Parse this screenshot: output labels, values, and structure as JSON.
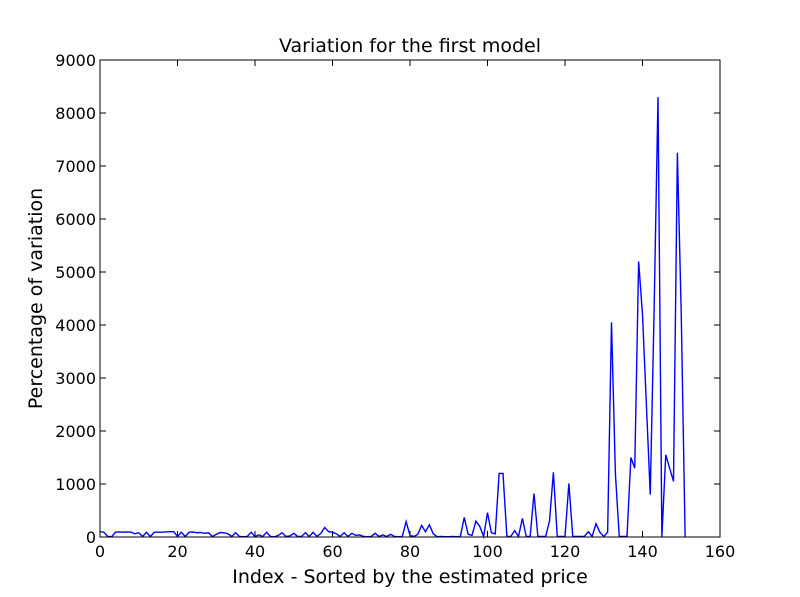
{
  "chart_data": {
    "type": "line",
    "title": "Variation for the first model",
    "xlabel": "Index - Sorted by the estimated price",
    "ylabel": "Percentage of variation",
    "xlim": [
      0,
      160
    ],
    "ylim": [
      0,
      9000
    ],
    "xticks": [
      0,
      20,
      40,
      60,
      80,
      100,
      120,
      140,
      160
    ],
    "yticks": [
      0,
      1000,
      2000,
      3000,
      4000,
      5000,
      6000,
      7000,
      8000,
      9000
    ],
    "grid": false,
    "series_color": "#0000ff",
    "series": [
      {
        "x": [
          0,
          1,
          2,
          3,
          4,
          5,
          6,
          7,
          8,
          9,
          10,
          11,
          12,
          13,
          14,
          15,
          16,
          17,
          18,
          19,
          20,
          21,
          22,
          23,
          24,
          25,
          26,
          27,
          28,
          29,
          30,
          31,
          32,
          33,
          34,
          35,
          36,
          37,
          38,
          39,
          40,
          41,
          42,
          43,
          44,
          45,
          46,
          47,
          48,
          49,
          50,
          51,
          52,
          53,
          54,
          55,
          56,
          57,
          58,
          59,
          60,
          61,
          62,
          63,
          64,
          65,
          66,
          67,
          68,
          69,
          70,
          71,
          72,
          73,
          74,
          75,
          76,
          77,
          78,
          79,
          80,
          81,
          82,
          83,
          84,
          85,
          86,
          87,
          88,
          89,
          90,
          91,
          92,
          93,
          94,
          95,
          96,
          97,
          98,
          99,
          100,
          101,
          102,
          103,
          104,
          105,
          106,
          107,
          108,
          109,
          110,
          111,
          112,
          113,
          114,
          115,
          116,
          117,
          118,
          119,
          120,
          121,
          122,
          123,
          124,
          125,
          126,
          127,
          128,
          129,
          130,
          131,
          132,
          133,
          134,
          135,
          136,
          137,
          138,
          139,
          140,
          141,
          142,
          143,
          144,
          145,
          146,
          147,
          148,
          149,
          150,
          151
        ],
        "values": [
          100,
          90,
          10,
          5,
          90,
          95,
          90,
          95,
          90,
          60,
          80,
          10,
          90,
          10,
          90,
          90,
          90,
          95,
          100,
          100,
          10,
          90,
          10,
          90,
          95,
          80,
          85,
          70,
          80,
          10,
          50,
          85,
          80,
          60,
          10,
          80,
          10,
          5,
          10,
          90,
          10,
          40,
          10,
          90,
          10,
          5,
          30,
          80,
          10,
          20,
          70,
          10,
          10,
          80,
          10,
          90,
          10,
          70,
          180,
          100,
          90,
          60,
          10,
          80,
          10,
          70,
          30,
          40,
          10,
          5,
          10,
          70,
          10,
          40,
          10,
          50,
          10,
          5,
          10,
          290,
          30,
          10,
          50,
          220,
          100,
          230,
          60,
          5,
          10,
          5,
          5,
          10,
          5,
          10,
          370,
          50,
          30,
          300,
          200,
          10,
          460,
          80,
          60,
          1200,
          1200,
          10,
          10,
          120,
          10,
          350,
          10,
          10,
          820,
          10,
          10,
          10,
          300,
          1220,
          10,
          10,
          10,
          1010,
          10,
          10,
          10,
          10,
          100,
          10,
          250,
          90,
          10,
          90,
          4050,
          1200,
          10,
          10,
          10,
          1500,
          1300,
          5200,
          4200,
          2500,
          800,
          4300,
          8300,
          10,
          1550,
          1300,
          1050,
          7250,
          4200,
          0
        ]
      }
    ]
  }
}
